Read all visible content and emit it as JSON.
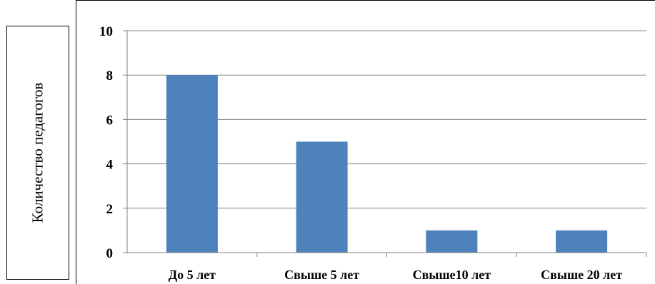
{
  "chart_data": {
    "type": "bar",
    "categories": [
      "До 5 лет",
      "Свыше 5 лет",
      "Свыше10 лет",
      "Свыше 20 лет"
    ],
    "values": [
      8,
      5,
      1,
      1
    ],
    "ylabel": "Количество педагогов",
    "xlabel": "",
    "ylim": [
      0,
      10
    ],
    "yticks": [
      "0",
      "2",
      "4",
      "6",
      "8",
      "10"
    ],
    "grid": true,
    "bar_color": "#4F81BD"
  }
}
